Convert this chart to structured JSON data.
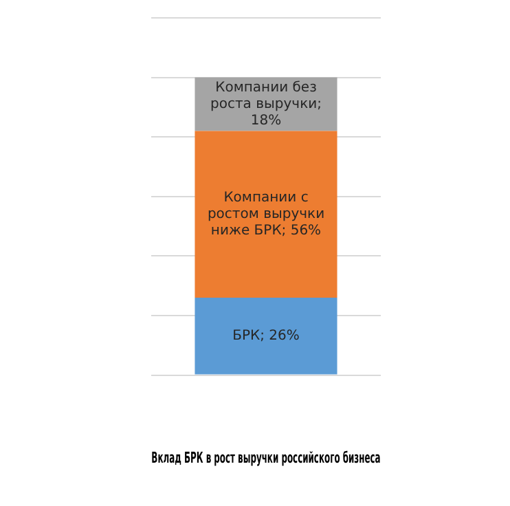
{
  "chart_data": {
    "type": "bar",
    "title": "Вклад БРК в рост выручки российского бизнеса",
    "categories": [
      null
    ],
    "stacked": true,
    "series": [
      {
        "color": "#5b9bd5",
        "values": [
          26
        ],
        "value_labels": [
          "БРК; 26%"
        ]
      },
      {
        "color": "#ed7d31",
        "values": [
          56
        ],
        "value_labels": [
          "Компании с ростом выручки ниже БРК; 56%"
        ]
      },
      {
        "color": "#a5a5a5",
        "values": [
          18
        ],
        "value_labels": [
          "Компании без роста выручки; 18%"
        ]
      }
    ],
    "grid": "y",
    "tick_labels": false,
    "legend": false
  }
}
